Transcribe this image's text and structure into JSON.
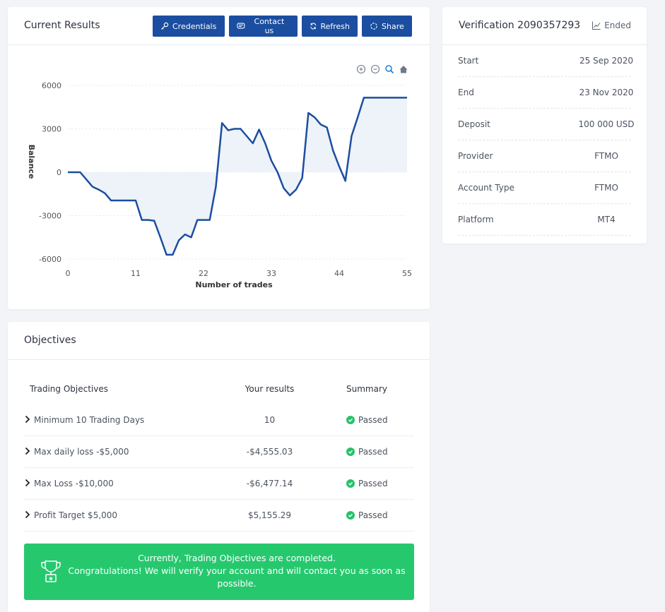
{
  "results": {
    "title": "Current Results",
    "buttons": {
      "credentials": "Credentials",
      "contact": "Contact us",
      "refresh": "Refresh",
      "share": "Share"
    }
  },
  "chart_data": {
    "type": "area",
    "xlabel": "Number of trades",
    "ylabel": "Balance",
    "xlim": [
      0,
      55
    ],
    "ylim": [
      -6000,
      6000
    ],
    "xticks": [
      "0",
      "11",
      "22",
      "33",
      "44",
      "55"
    ],
    "yticks": [
      "6000",
      "3000",
      "0",
      "-3000",
      "-6000"
    ],
    "line_color": "#1b4ea0",
    "fill_color": "#eef2f9",
    "x": [
      0,
      2,
      4,
      5,
      6,
      7,
      8,
      10,
      11,
      12,
      13,
      14,
      15,
      16,
      17,
      18,
      19,
      20,
      21,
      22,
      23,
      24,
      25,
      26,
      27,
      28,
      29,
      30,
      31,
      32,
      33,
      34,
      35,
      36,
      37,
      38,
      39,
      40,
      41,
      42,
      43,
      44,
      45,
      46,
      47,
      48,
      50,
      52,
      54,
      55
    ],
    "y": [
      0,
      0,
      -1000,
      -1200,
      -1450,
      -1950,
      -1950,
      -1950,
      -1950,
      -3300,
      -3300,
      -3350,
      -4500,
      -5700,
      -5700,
      -4700,
      -4300,
      -4500,
      -3300,
      -3300,
      -3300,
      -1000,
      3400,
      2900,
      3000,
      3000,
      2500,
      2000,
      2950,
      2000,
      800,
      0,
      -1100,
      -1600,
      -1200,
      -400,
      4100,
      3800,
      3300,
      3100,
      1500,
      400,
      -600,
      2500,
      3800,
      5150,
      5150,
      5150,
      5150,
      5150
    ]
  },
  "chart_toolbar": [
    "zoom-in-icon",
    "zoom-out-icon",
    "magnify-icon",
    "home-icon"
  ],
  "verification": {
    "title": "Verification 2090357293",
    "status": "Ended",
    "rows": [
      {
        "key": "Start",
        "value": "25 Sep 2020"
      },
      {
        "key": "End",
        "value": "23 Nov 2020"
      },
      {
        "key": "Deposit",
        "value": "100 000 USD"
      },
      {
        "key": "Provider",
        "value": "FTMO"
      },
      {
        "key": "Account Type",
        "value": "FTMO"
      },
      {
        "key": "Platform",
        "value": "MT4"
      }
    ]
  },
  "objectives": {
    "title": "Objectives",
    "headers": [
      "Trading Objectives",
      "Your results",
      "Summary"
    ],
    "rows": [
      {
        "name": "Minimum 10 Trading Days",
        "result": "10",
        "summary": "Passed"
      },
      {
        "name": "Max daily loss -$5,000",
        "result": "-$4,555.03",
        "summary": "Passed"
      },
      {
        "name": "Max Loss -$10,000",
        "result": "-$6,477.14",
        "summary": "Passed"
      },
      {
        "name": "Profit Target $5,000",
        "result": "$5,155.29",
        "summary": "Passed"
      }
    ],
    "banner": [
      "Currently, Trading Objectives are completed.",
      "Congratulations! We will verify your account and will contact you as soon as possible."
    ],
    "success_color": "#26c86e"
  }
}
